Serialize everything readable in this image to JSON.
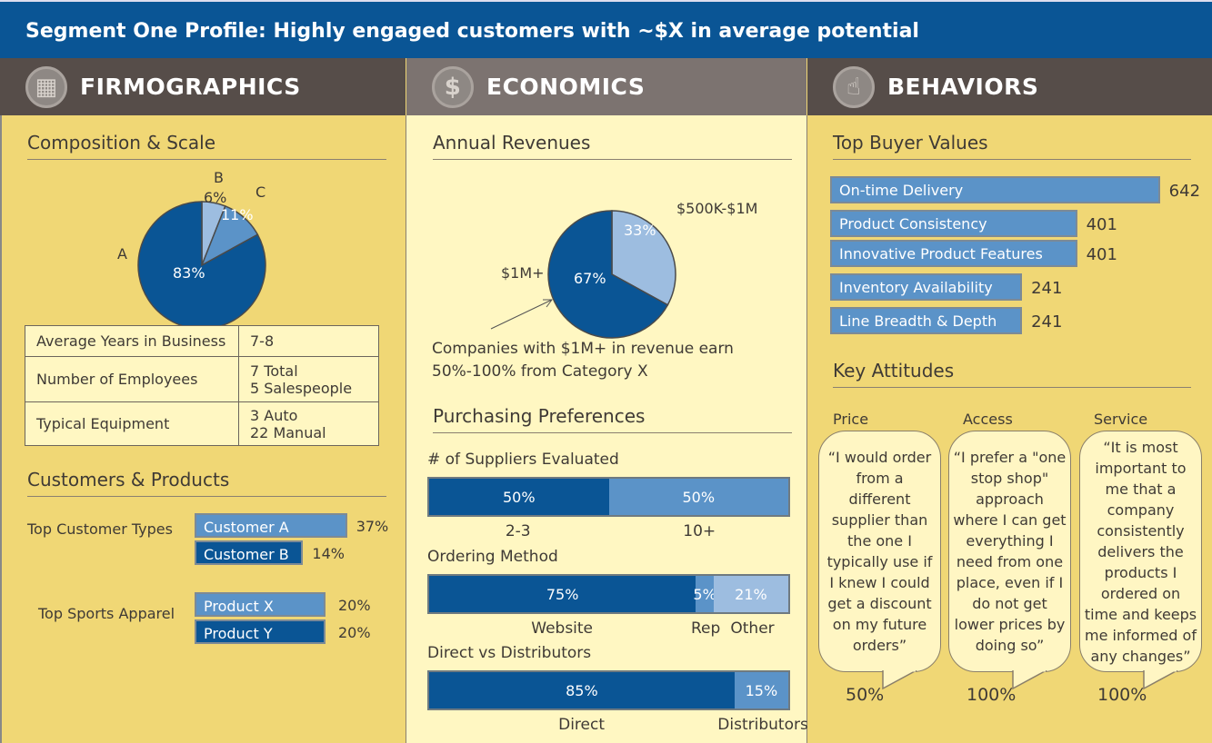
{
  "title": "Segment One Profile:  Highly engaged customers with ~$X in average potential",
  "columns": {
    "firmographics": "FIRMOGRAPHICS",
    "economics": "ECONOMICS",
    "behaviors": "BEHAVIORS"
  },
  "icons": {
    "firmographics": "building-icon",
    "economics": "dollar-icon",
    "behaviors": "hand-pointer-icon"
  },
  "colors": {
    "title_bar": "#0a5595",
    "header_dark": "#564d49",
    "header_mid": "#7c7370",
    "panel_yellow": "#f0d775",
    "panel_cream": "#fff7c2",
    "dark_blue": "#0a5595",
    "mid_blue": "#5b93c8",
    "light_blue": "#9dbde0"
  },
  "firmographics": {
    "composition_title": "Composition & Scale",
    "table": [
      {
        "label": "Average Years in Business",
        "value": "7-8"
      },
      {
        "label": "Number of Employees",
        "value": "7 Total\n5 Salespeople"
      },
      {
        "label": "Typical Equipment",
        "value": "3 Auto\n22 Manual"
      }
    ],
    "customers_title": "Customers & Products",
    "top_customer_types_label": "Top Customer Types",
    "top_sports_apparel_label": "Top Sports Apparel"
  },
  "economics": {
    "revenues_title": "Annual Revenues",
    "note": "Companies with $1M+ in revenue earn 50%-100% from Category X",
    "purchasing_title": "Purchasing Preferences"
  },
  "behaviors": {
    "buyer_values_title": "Top Buyer Values",
    "attitudes_title": "Key Attitudes",
    "attitudes": [
      {
        "label": "Price",
        "quote": "“I would order from a different supplier than the one I typically use if I knew I could get a discount on my future orders”",
        "pct": "50%"
      },
      {
        "label": "Access",
        "quote": "“I prefer a \"one stop shop\" approach where I can get everything I need from one place, even if I do not get lower prices by doing so”",
        "pct": "100%"
      },
      {
        "label": "Service",
        "quote": "“It is most important to me that a company consistently delivers the products I ordered on time and keeps me informed of any changes”",
        "pct": "100%"
      }
    ]
  },
  "chart_data": [
    {
      "type": "pie",
      "title": "Composition & Scale",
      "slices": [
        {
          "label": "B",
          "value": 6,
          "text": "6%"
        },
        {
          "label": "C",
          "value": 11,
          "text": "11%"
        },
        {
          "label": "A",
          "value": 83,
          "text": "83%"
        }
      ]
    },
    {
      "type": "pie",
      "title": "Annual Revenues",
      "slices": [
        {
          "label": "$500K-$1M",
          "value": 33,
          "text": "33%"
        },
        {
          "label": "$1M+",
          "value": 67,
          "text": "67%"
        }
      ]
    },
    {
      "type": "bar",
      "title": "Top Customer Types",
      "categories": [
        "Customer A",
        "Customer B"
      ],
      "values": [
        37,
        14
      ],
      "labels": [
        "37%",
        "14%"
      ]
    },
    {
      "type": "bar",
      "title": "Top Sports Apparel",
      "categories": [
        "Product X",
        "Product Y"
      ],
      "values": [
        20,
        20
      ],
      "labels": [
        "20%",
        "20%"
      ]
    },
    {
      "type": "bar",
      "title": "Top Buyer Values",
      "categories": [
        "On-time Delivery",
        "Product Consistency",
        "Innovative Product Features",
        "Inventory Availability",
        "Line Breadth & Depth"
      ],
      "values": [
        642,
        401,
        401,
        241,
        241
      ],
      "labels": [
        "642",
        "401",
        "401",
        "241",
        "241"
      ]
    },
    {
      "type": "bar",
      "stacked": true,
      "title": "# of Suppliers Evaluated",
      "categories": [
        "2-3",
        "10+"
      ],
      "values": [
        50,
        50
      ],
      "labels": [
        "50%",
        "50%"
      ]
    },
    {
      "type": "bar",
      "stacked": true,
      "title": "Ordering Method",
      "categories": [
        "Website",
        "Rep",
        "Other"
      ],
      "values": [
        75,
        5,
        21
      ],
      "labels": [
        "75%",
        "5%",
        "21%"
      ]
    },
    {
      "type": "bar",
      "stacked": true,
      "title": "Direct vs Distributors",
      "categories": [
        "Direct",
        "Distributors"
      ],
      "values": [
        85,
        15
      ],
      "labels": [
        "85%",
        "15%"
      ]
    }
  ]
}
